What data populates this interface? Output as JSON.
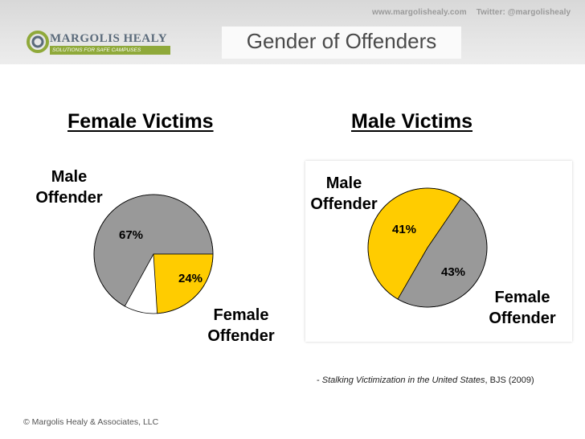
{
  "header": {
    "website": "www.margolishealy.com",
    "twitter": "Twitter: @margolishealy",
    "logo_name": "MARGOLIS HEALY",
    "logo_tagline": "SOLUTIONS FOR SAFE CAMPUSES",
    "title": "Gender of Offenders"
  },
  "chart_data": [
    {
      "type": "pie",
      "title": "Female Victims",
      "labels": [
        "Male Offender",
        "Female Offender"
      ],
      "values": [
        67,
        24
      ],
      "data_labels": [
        "67%",
        "24%"
      ],
      "colors": [
        "#999999",
        "#ffcc00"
      ]
    },
    {
      "type": "pie",
      "title": "Male Victims",
      "labels": [
        "Male Offender",
        "Female Offender"
      ],
      "values": [
        41,
        43
      ],
      "data_labels": [
        "41%",
        "43%"
      ],
      "colors": [
        "#999999",
        "#ffcc00"
      ]
    }
  ],
  "labels": {
    "male_line1": "Male",
    "offender": "Offender",
    "female_line1": "Female"
  },
  "citation": {
    "dash": "- ",
    "work": "Stalking Victimization in the United States",
    "rest": ", BJS (2009)"
  },
  "footer": {
    "copyright": "© Margolis Healy & Associates, LLC"
  }
}
